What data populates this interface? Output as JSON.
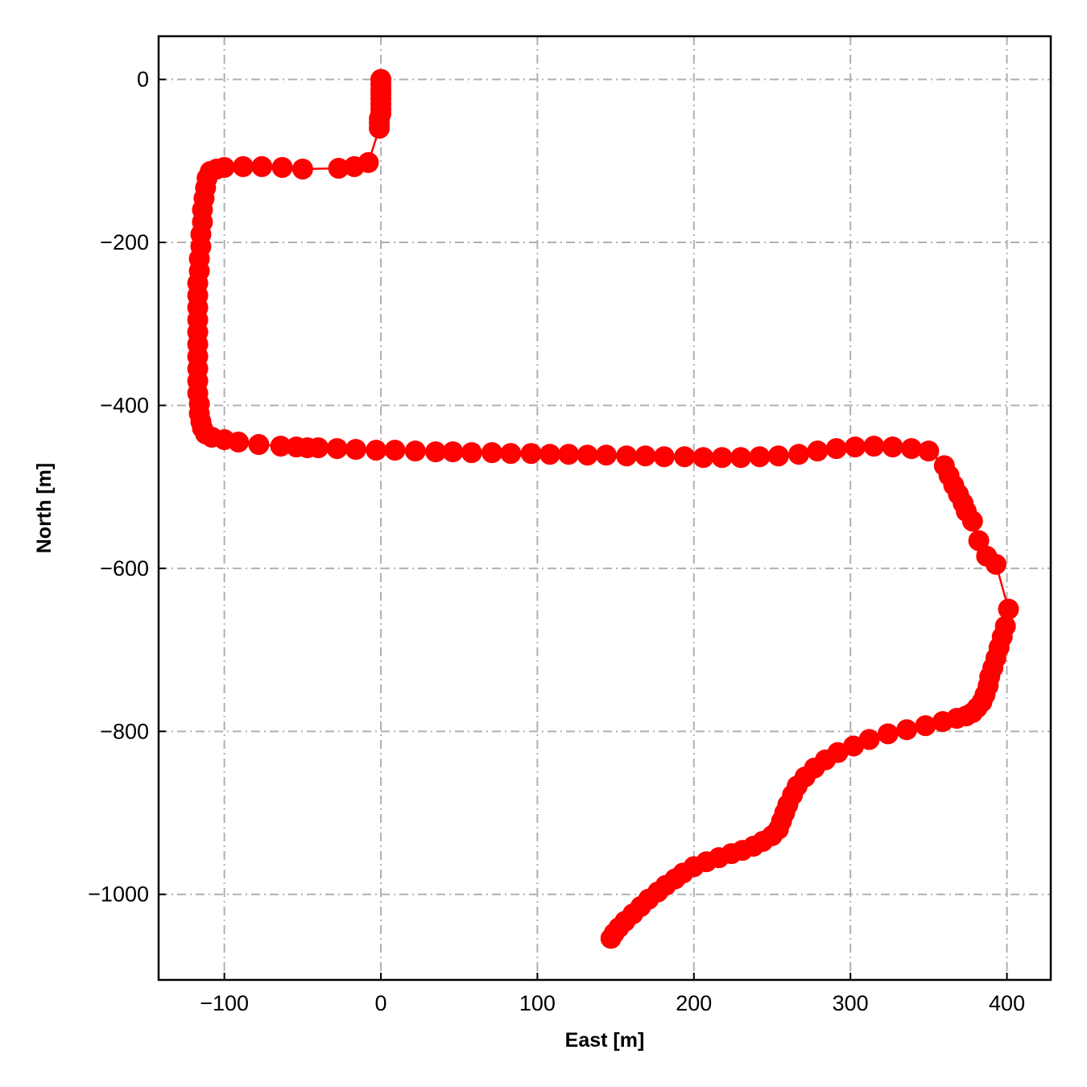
{
  "chart_data": {
    "type": "line",
    "title": "",
    "xlabel": "East [m]",
    "ylabel": "North [m]",
    "xlim": [
      -142,
      428
    ],
    "ylim": [
      -1105,
      53
    ],
    "xticks": [
      -100,
      0,
      100,
      200,
      300,
      400
    ],
    "yticks": [
      0,
      -200,
      -400,
      -600,
      -800,
      -1000
    ],
    "xtick_labels": [
      "−100",
      "0",
      "100",
      "200",
      "300",
      "400"
    ],
    "ytick_labels": [
      "0",
      "−200",
      "−400",
      "−600",
      "−800",
      "−1000"
    ],
    "grid": true,
    "colors": {
      "series": "#ff0000",
      "grid": "#b0b0b0",
      "axes": "#000000"
    },
    "series": [
      {
        "marker": "circle",
        "line": "solid",
        "x": [
          0,
          0,
          0,
          0,
          0,
          0,
          0,
          0,
          -1,
          -1,
          -1,
          -8,
          -17,
          -27,
          -50,
          -63,
          -76,
          -88,
          -100,
          -105,
          -109,
          -111,
          -112,
          -113,
          -114,
          -114,
          -115,
          -115,
          -116,
          -116,
          -117,
          -117,
          -117,
          -117,
          -117,
          -117,
          -117,
          -117,
          -117,
          -117,
          -116,
          -116,
          -115,
          -114,
          -112,
          -108,
          -100,
          -91,
          -78,
          -64,
          -54,
          -47,
          -40,
          -28,
          -16,
          -3,
          9,
          22,
          35,
          46,
          58,
          71,
          83,
          96,
          108,
          120,
          132,
          144,
          157,
          169,
          181,
          194,
          206,
          218,
          230,
          242,
          254,
          267,
          279,
          291,
          303,
          315,
          327,
          339,
          350,
          360,
          363,
          366,
          369,
          372,
          374,
          378,
          382,
          387,
          393,
          401,
          399,
          397,
          395,
          393,
          391,
          389,
          388,
          386,
          384,
          381,
          378,
          374,
          368,
          359,
          348,
          336,
          324,
          312,
          302,
          292,
          284,
          277,
          271,
          266,
          263,
          260,
          258,
          256,
          254,
          250,
          244,
          238,
          231,
          224,
          216,
          208,
          200,
          193,
          188,
          182,
          177,
          171,
          166,
          161,
          156,
          152,
          149,
          147
        ],
        "y": [
          0,
          -6,
          -12,
          -18,
          -24,
          -30,
          -36,
          -42,
          -48,
          -54,
          -60,
          -102,
          -107,
          -109,
          -110,
          -108,
          -107,
          -107,
          -108,
          -110,
          -113,
          -121,
          -133,
          -146,
          -160,
          -175,
          -190,
          -205,
          -220,
          -235,
          -250,
          -265,
          -280,
          -295,
          -310,
          -325,
          -340,
          -355,
          -370,
          -385,
          -398,
          -410,
          -420,
          -428,
          -435,
          -439,
          -442,
          -445,
          -448,
          -450,
          -451,
          -452,
          -452,
          -453,
          -454,
          -455,
          -455,
          -456,
          -457,
          -457,
          -458,
          -458,
          -459,
          -459,
          -460,
          -460,
          -461,
          -461,
          -462,
          -462,
          -463,
          -463,
          -464,
          -464,
          -464,
          -463,
          -462,
          -460,
          -456,
          -453,
          -451,
          -450,
          -451,
          -453,
          -456,
          -474,
          -486,
          -498,
          -509,
          -520,
          -530,
          -542,
          -566,
          -585,
          -595,
          -650,
          -671,
          -684,
          -697,
          -710,
          -722,
          -733,
          -744,
          -755,
          -764,
          -771,
          -777,
          -781,
          -784,
          -788,
          -793,
          -798,
          -803,
          -810,
          -818,
          -826,
          -835,
          -845,
          -856,
          -867,
          -878,
          -890,
          -900,
          -910,
          -920,
          -928,
          -935,
          -941,
          -946,
          -950,
          -955,
          -960,
          -966,
          -974,
          -981,
          -989,
          -997,
          -1006,
          -1015,
          -1024,
          -1033,
          -1041,
          -1048,
          -1054
        ]
      }
    ]
  }
}
